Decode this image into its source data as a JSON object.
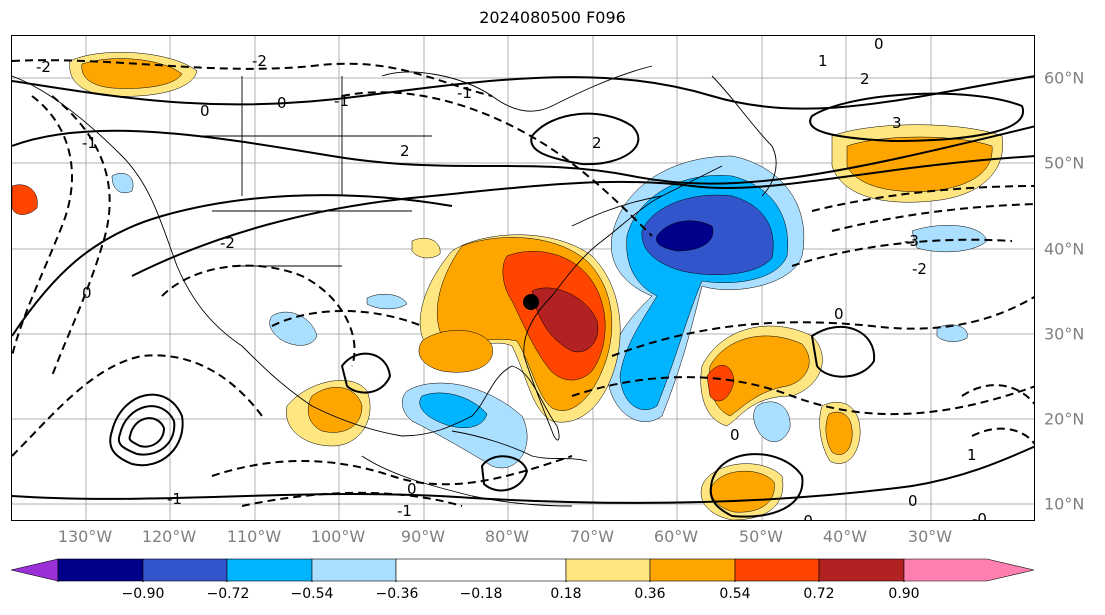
{
  "title": "2024080500 F096",
  "lon_labels": [
    "130°W",
    "120°W",
    "110°W",
    "100°W",
    "90°W",
    "80°W",
    "70°W",
    "60°W",
    "50°W",
    "40°W",
    "30°W"
  ],
  "lat_labels": [
    "60°N",
    "50°N",
    "40°N",
    "30°N",
    "20°N",
    "10°N"
  ],
  "colorbar": {
    "ticks": [
      "−0.90",
      "−0.72",
      "−0.54",
      "−0.36",
      "−0.18",
      "0.18",
      "0.36",
      "0.54",
      "0.72",
      "0.90"
    ],
    "colors": [
      "#9b30d8",
      "#00008b",
      "#3355cc",
      "#00b4ff",
      "#aadfff",
      "#ffffff",
      "#ffe680",
      "#ffa500",
      "#ff4500",
      "#b22222",
      "#ff80b0"
    ]
  },
  "contour_labels": [
    "0",
    "0",
    "-2",
    "2",
    "-1",
    "-1",
    "0",
    "1",
    "2",
    "3",
    "-3",
    "-2",
    "-2",
    "0",
    "0",
    "-1",
    "1",
    "0",
    "-0",
    "0",
    "-1",
    "-1",
    "-2",
    "2",
    "0",
    "-0"
  ]
}
